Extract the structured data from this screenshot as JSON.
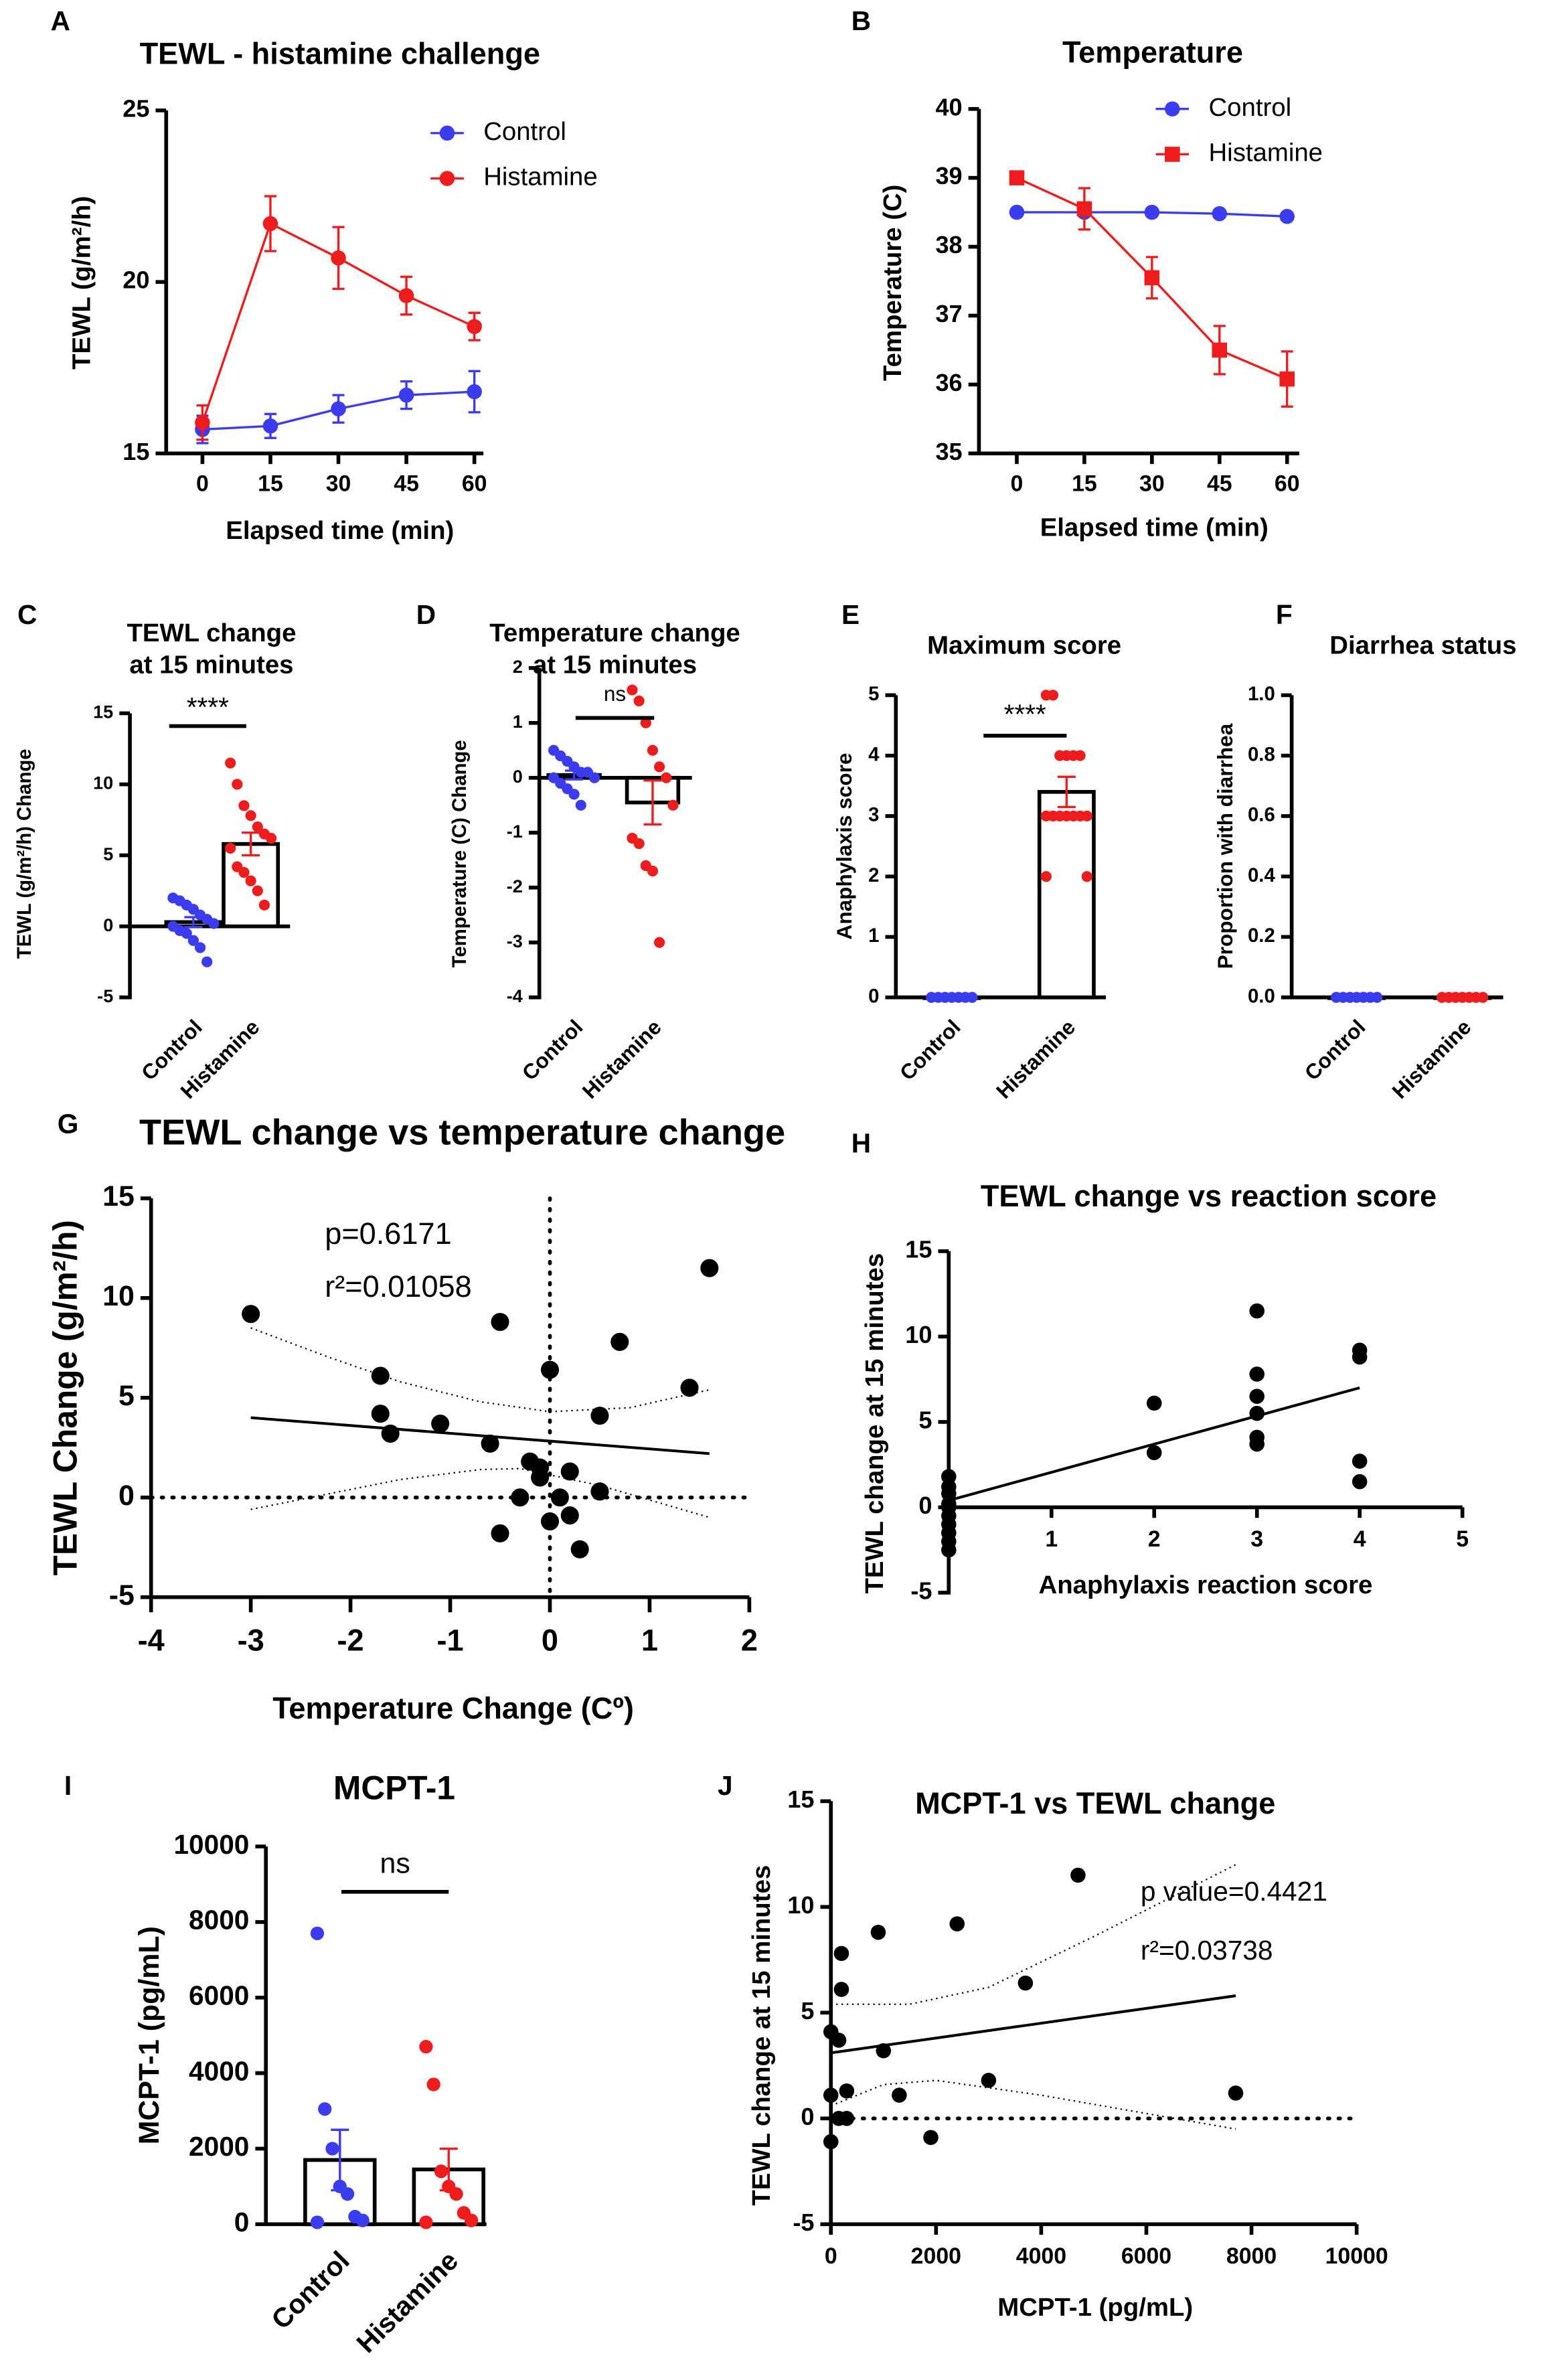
{
  "colors": {
    "control": "#3b3bf0",
    "histamine": "#ee1c1c",
    "axis": "#000000"
  },
  "chart_data": [
    {
      "panel": "A",
      "type": "line",
      "title": [
        "TEWL - histamine challenge"
      ],
      "xlabel": "Elapsed time (min)",
      "ylabel": "TEWL (g/m²/h)",
      "xticks": [
        0,
        15,
        30,
        45,
        60
      ],
      "yticks": [
        15,
        20,
        25
      ],
      "xlim": [
        -8,
        62
      ],
      "ylim": [
        15,
        25
      ],
      "legend": "top-right",
      "series": [
        {
          "name": "Control",
          "color": "control",
          "marker": "circle",
          "x": [
            0,
            15,
            30,
            45,
            60
          ],
          "y": [
            15.7,
            15.8,
            16.3,
            16.7,
            16.8
          ],
          "err": [
            0.4,
            0.35,
            0.4,
            0.4,
            0.6
          ]
        },
        {
          "name": "Histamine",
          "color": "histamine",
          "marker": "circle",
          "x": [
            0,
            15,
            30,
            45,
            60
          ],
          "y": [
            15.9,
            21.7,
            20.7,
            19.6,
            18.7
          ],
          "err": [
            0.5,
            0.8,
            0.9,
            0.55,
            0.4
          ]
        }
      ]
    },
    {
      "panel": "B",
      "type": "line",
      "title": [
        "Temperature"
      ],
      "xlabel": "Elapsed time (min)",
      "ylabel": "Temperature (C)",
      "xticks": [
        0,
        15,
        30,
        45,
        60
      ],
      "yticks": [
        35,
        36,
        37,
        38,
        39,
        40
      ],
      "xlim": [
        -8.4,
        62.7
      ],
      "ylim": [
        35,
        40
      ],
      "legend": "top-right",
      "series": [
        {
          "name": "Control",
          "color": "control",
          "marker": "circle",
          "x": [
            0,
            15,
            30,
            45,
            60
          ],
          "y": [
            38.5,
            38.5,
            38.5,
            38.48,
            38.44
          ],
          "err": [
            0.03,
            0.03,
            0.03,
            0.03,
            0.03
          ]
        },
        {
          "name": "Histamine",
          "color": "histamine",
          "marker": "square",
          "x": [
            0,
            15,
            30,
            45,
            60
          ],
          "y": [
            39.0,
            38.55,
            37.55,
            36.5,
            36.08
          ],
          "err": [
            0.02,
            0.3,
            0.3,
            0.35,
            0.4
          ]
        }
      ]
    },
    {
      "panel": "C",
      "type": "category_scatter_bar",
      "title": [
        "TEWL change",
        "at 15 minutes"
      ],
      "ylabel": "TEWL (g/m²/h) Change",
      "yticks": [
        -5,
        0,
        5,
        10,
        15
      ],
      "ylim": [
        -5,
        15
      ],
      "significance": {
        "text": "****",
        "line_y": 14.1,
        "text_y": 15.3
      },
      "groups": [
        {
          "name": "Control",
          "color": "control",
          "mean": 0.3,
          "sem": 0.35,
          "points": [
            2,
            1.8,
            1.5,
            1.2,
            0.8,
            0.5,
            0.2,
            0,
            -0.3,
            -0.5,
            -1,
            -1.5,
            -2.5
          ]
        },
        {
          "name": "Histamine",
          "color": "histamine",
          "mean": 5.8,
          "sem": 0.8,
          "points": [
            11.5,
            10,
            8.5,
            7.8,
            7,
            6.5,
            6.2,
            5.5,
            4.2,
            3.8,
            3.2,
            2.5,
            1.5
          ]
        }
      ]
    },
    {
      "panel": "D",
      "type": "category_scatter_bar",
      "title": [
        "Temperature change",
        "at 15 minutes"
      ],
      "ylabel": "Temperature (C) Change",
      "yticks": [
        -4,
        -3,
        -2,
        -1,
        0,
        1,
        2
      ],
      "ylim": [
        -4,
        2
      ],
      "significance": {
        "text": "ns",
        "line_y": 1.09,
        "text_y": 1.5
      },
      "groups": [
        {
          "name": "Control",
          "color": "control",
          "mean": 0.05,
          "sem": 0.08,
          "points": [
            0.5,
            0.4,
            0.3,
            0.2,
            0.1,
            0.1,
            0,
            0,
            -0.1,
            -0.2,
            -0.3,
            -0.5
          ]
        },
        {
          "name": "Histamine",
          "color": "histamine",
          "mean": -0.45,
          "sem": 0.4,
          "points": [
            1.6,
            1.4,
            1.0,
            0.5,
            0.2,
            0,
            -0.5,
            -1.1,
            -1.2,
            -1.6,
            -1.7,
            -3.0
          ]
        }
      ]
    },
    {
      "panel": "E",
      "type": "category_scatter_bar",
      "title": [
        "Maximum score"
      ],
      "ylabel": "Anaphylaxis score",
      "yticks": [
        0,
        1,
        2,
        3,
        4,
        5
      ],
      "ylim": [
        0,
        5
      ],
      "significance": {
        "text": "****",
        "line_y": 4.33,
        "text_y": 4.65
      },
      "groups": [
        {
          "name": "Control",
          "color": "control",
          "mean": 0,
          "sem": 0,
          "points": [
            0,
            0,
            0,
            0,
            0,
            0,
            0,
            0,
            0,
            0,
            0,
            0,
            0,
            0
          ]
        },
        {
          "name": "Histamine",
          "color": "histamine",
          "mean": 3.4,
          "sem": 0.25,
          "points": [
            5,
            5,
            4,
            4,
            4,
            4,
            3,
            3,
            3,
            3,
            3,
            3,
            3,
            2,
            2
          ]
        }
      ]
    },
    {
      "panel": "F",
      "type": "category_scatter_bar",
      "title": [
        "Diarrhea status"
      ],
      "ylabel": "Proportion with diarrhea",
      "yticks": [
        "0.0",
        "0.2",
        "0.4",
        "0.6",
        "0.8",
        "1.0"
      ],
      "ylim": [
        0,
        1
      ],
      "groups": [
        {
          "name": "Control",
          "color": "control",
          "mean": 0,
          "sem": 0,
          "points": [
            0,
            0,
            0,
            0,
            0,
            0,
            0,
            0,
            0,
            0,
            0,
            0,
            0,
            0
          ]
        },
        {
          "name": "Histamine",
          "color": "histamine",
          "mean": 0,
          "sem": 0,
          "points": [
            0,
            0,
            0,
            0,
            0,
            0,
            0,
            0,
            0,
            0,
            0,
            0,
            0,
            0
          ]
        }
      ]
    },
    {
      "panel": "G",
      "type": "scatter",
      "title": [
        "TEWL change vs temperature change"
      ],
      "xlabel": "Temperature Change  (Cº)",
      "ylabel": "TEWL Change (g/m²/h)",
      "xticks": [
        -4,
        -3,
        -2,
        -1,
        0,
        1,
        2
      ],
      "yticks": [
        -5,
        0,
        5,
        10,
        15
      ],
      "xlim": [
        -4,
        2
      ],
      "ylim": [
        -5,
        15
      ],
      "annotations": [
        "p=0.6171",
        "r²=0.01058"
      ],
      "points": [
        [
          -3,
          9.2
        ],
        [
          -0.5,
          8.8
        ],
        [
          1.6,
          11.5
        ],
        [
          0.7,
          7.8
        ],
        [
          0,
          6.4
        ],
        [
          -1.7,
          6.1
        ],
        [
          1.4,
          5.5
        ],
        [
          -1.7,
          4.2
        ],
        [
          0.5,
          4.1
        ],
        [
          -1.1,
          3.7
        ],
        [
          -1.6,
          3.2
        ],
        [
          -0.6,
          2.7
        ],
        [
          -0.2,
          1.8
        ],
        [
          -0.1,
          1.5
        ],
        [
          -0.1,
          1.0
        ],
        [
          0.2,
          1.3
        ],
        [
          -0.3,
          0
        ],
        [
          0.1,
          0
        ],
        [
          0.5,
          0.3
        ],
        [
          0.2,
          -0.9
        ],
        [
          0,
          -1.2
        ],
        [
          -0.5,
          -1.8
        ],
        [
          0.3,
          -2.6
        ]
      ],
      "regression": [
        [
          -3,
          4.0
        ],
        [
          1.6,
          2.2
        ]
      ],
      "ci_upper": [
        [
          -3,
          8.5
        ],
        [
          -2.2,
          7.0
        ],
        [
          -1.5,
          5.8
        ],
        [
          -0.7,
          4.8
        ],
        [
          0,
          4.3
        ],
        [
          0.8,
          4.5
        ],
        [
          1.6,
          5.4
        ]
      ],
      "ci_lower": [
        [
          -3,
          -0.6
        ],
        [
          -2.2,
          0.2
        ],
        [
          -1.5,
          0.9
        ],
        [
          -0.7,
          1.4
        ],
        [
          -0.3,
          1.45
        ],
        [
          0.5,
          0.6
        ],
        [
          1.6,
          -1.0
        ]
      ],
      "ref_lines": {
        "x0": true,
        "y0": true
      }
    },
    {
      "panel": "H",
      "type": "scatter",
      "title": [
        "TEWL change vs reaction score"
      ],
      "xlabel": "Anaphylaxis reaction score",
      "ylabel": "TEWL change at 15 minutes",
      "xticks": [
        1,
        2,
        3,
        4,
        5
      ],
      "yticks": [
        -5,
        0,
        5,
        10,
        15
      ],
      "xlim": [
        0,
        5
      ],
      "ylim": [
        -5,
        15
      ],
      "points": [
        [
          0,
          1.8
        ],
        [
          0,
          1.2
        ],
        [
          0,
          0.8
        ],
        [
          0,
          0.2
        ],
        [
          0,
          0
        ],
        [
          0,
          -0.5
        ],
        [
          0,
          -1
        ],
        [
          0,
          -1.5
        ],
        [
          0,
          -2
        ],
        [
          0,
          -2.5
        ],
        [
          2,
          6.1
        ],
        [
          2,
          3.2
        ],
        [
          3,
          11.5
        ],
        [
          3,
          7.8
        ],
        [
          3,
          6.5
        ],
        [
          3,
          5.5
        ],
        [
          3,
          4.1
        ],
        [
          3,
          3.7
        ],
        [
          4,
          9.2
        ],
        [
          4,
          8.8
        ],
        [
          4,
          2.7
        ],
        [
          4,
          1.5
        ]
      ],
      "regression": [
        [
          0,
          0.4
        ],
        [
          4,
          7.0
        ]
      ],
      "x_axis_at_zero": true
    },
    {
      "panel": "I",
      "type": "category_scatter_bar",
      "title": [
        "MCPT-1"
      ],
      "ylabel": "MCPT-1 (pg/mL)",
      "yticks": [
        0,
        2000,
        4000,
        6000,
        8000,
        10000
      ],
      "ylim": [
        0,
        10000
      ],
      "significance": {
        "text": "ns",
        "line_y": 8800,
        "text_y": 9500
      },
      "groups": [
        {
          "name": "Control",
          "color": "control",
          "mean": 1700,
          "sem": 800,
          "points": [
            7700,
            3050,
            2000,
            1000,
            800,
            200,
            100,
            50
          ]
        },
        {
          "name": "Histamine",
          "color": "histamine",
          "mean": 1450,
          "sem": 550,
          "points": [
            4700,
            3700,
            1400,
            1000,
            800,
            300,
            100,
            50
          ]
        }
      ]
    },
    {
      "panel": "J",
      "type": "scatter",
      "title": [
        "MCPT-1 vs TEWL change"
      ],
      "xlabel": "MCPT-1 (pg/mL)",
      "ylabel": "TEWL change at 15 minutes",
      "xticks": [
        0,
        2000,
        4000,
        6000,
        8000,
        10000
      ],
      "yticks": [
        -5,
        0,
        5,
        10,
        15
      ],
      "xlim": [
        0,
        10000
      ],
      "ylim": [
        -5,
        15
      ],
      "annotations": [
        "p value=0.4421",
        "r²=0.03738"
      ],
      "points": [
        [
          0,
          4.1
        ],
        [
          150,
          3.7
        ],
        [
          200,
          7.8
        ],
        [
          200,
          6.1
        ],
        [
          900,
          8.8
        ],
        [
          2400,
          9.2
        ],
        [
          4700,
          11.5
        ],
        [
          3700,
          6.4
        ],
        [
          1000,
          3.2
        ],
        [
          0,
          1.1
        ],
        [
          0,
          -1.1
        ],
        [
          300,
          1.3
        ],
        [
          150,
          0
        ],
        [
          300,
          0
        ],
        [
          1300,
          1.1
        ],
        [
          1900,
          -0.9
        ],
        [
          3000,
          1.8
        ],
        [
          7700,
          1.2
        ]
      ],
      "regression": [
        [
          0,
          3.1
        ],
        [
          7700,
          5.8
        ]
      ],
      "ci_upper": [
        [
          0,
          5.4
        ],
        [
          1500,
          5.4
        ],
        [
          3000,
          6.2
        ],
        [
          5000,
          8.6
        ],
        [
          7700,
          12.0
        ]
      ],
      "ci_lower": [
        [
          0,
          0.6
        ],
        [
          1000,
          1.6
        ],
        [
          2000,
          1.8
        ],
        [
          4000,
          1.1
        ],
        [
          7700,
          -0.5
        ]
      ],
      "ref_lines": {
        "y0": true
      }
    }
  ]
}
